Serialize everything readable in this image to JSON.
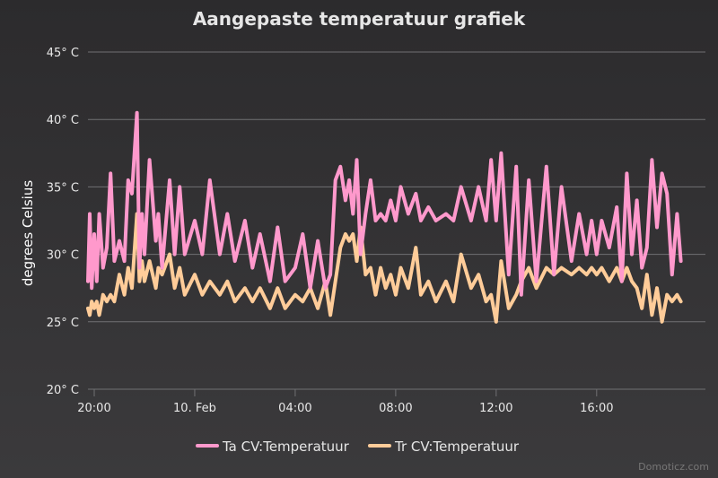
{
  "chart_data": {
    "type": "line",
    "title": "Aangepaste temperatuur grafiek",
    "ylabel": "degrees Celsius",
    "ylim": [
      20,
      45
    ],
    "yticks": [
      20,
      25,
      30,
      35,
      40,
      45
    ],
    "ytick_labels": [
      "20° C",
      "25° C",
      "30° C",
      "35° C",
      "40° C",
      "45° C"
    ],
    "xlim": [
      "19:45",
      "20:20 +1d"
    ],
    "xticks": [
      {
        "label": "20:00",
        "hour": 20
      },
      {
        "label": "10. Feb",
        "hour": 24
      },
      {
        "label": "04:00",
        "hour": 28
      },
      {
        "label": "08:00",
        "hour": 32
      },
      {
        "label": "12:00",
        "hour": 36
      },
      {
        "label": "16:00",
        "hour": 40
      }
    ],
    "grid": true,
    "legend_position": "bottom",
    "credit": "Domoticz.com",
    "series": [
      {
        "name": "Ta CV:Temperatuur",
        "color": "#ff99cc",
        "hours": [
          19.75,
          19.82,
          19.9,
          20.0,
          20.1,
          20.2,
          20.35,
          20.5,
          20.65,
          20.8,
          21.0,
          21.2,
          21.35,
          21.5,
          21.7,
          21.8,
          21.9,
          22.0,
          22.2,
          22.45,
          22.55,
          22.7,
          23.0,
          23.2,
          23.4,
          23.6,
          24.0,
          24.3,
          24.6,
          25.0,
          25.3,
          25.6,
          26.0,
          26.3,
          26.6,
          27.0,
          27.3,
          27.6,
          28.0,
          28.3,
          28.6,
          28.9,
          29.2,
          29.4,
          29.6,
          29.8,
          30.0,
          30.15,
          30.3,
          30.45,
          30.6,
          30.8,
          31.0,
          31.2,
          31.4,
          31.6,
          31.8,
          32.0,
          32.2,
          32.5,
          32.8,
          33.0,
          33.3,
          33.6,
          34.0,
          34.3,
          34.6,
          35.0,
          35.3,
          35.6,
          35.8,
          36.0,
          36.2,
          36.5,
          36.8,
          37.0,
          37.3,
          37.6,
          38.0,
          38.3,
          38.6,
          39.0,
          39.3,
          39.6,
          39.8,
          40.0,
          40.2,
          40.5,
          40.8,
          41.0,
          41.2,
          41.4,
          41.6,
          41.8,
          42.0,
          42.2,
          42.4,
          42.6,
          42.8,
          43.0,
          43.2,
          43.35
        ],
        "values": [
          28.0,
          33.0,
          27.5,
          31.5,
          28.0,
          33.0,
          29.0,
          30.5,
          36.0,
          29.5,
          31.0,
          29.5,
          35.5,
          34.5,
          40.5,
          29.0,
          33.0,
          30.0,
          37.0,
          31.0,
          33.0,
          29.0,
          35.5,
          30.0,
          35.0,
          30.0,
          32.5,
          30.0,
          35.5,
          30.0,
          33.0,
          29.5,
          32.5,
          29.0,
          31.5,
          28.0,
          32.0,
          28.0,
          29.0,
          31.5,
          27.5,
          31.0,
          27.5,
          28.5,
          35.5,
          36.5,
          34.0,
          35.5,
          33.0,
          37.0,
          30.0,
          33.0,
          35.5,
          32.5,
          33.0,
          32.5,
          34.0,
          32.5,
          35.0,
          33.0,
          34.5,
          32.5,
          33.5,
          32.5,
          33.0,
          32.5,
          35.0,
          32.5,
          35.0,
          32.5,
          37.0,
          32.5,
          37.5,
          28.5,
          36.5,
          27.0,
          35.5,
          28.0,
          36.5,
          28.5,
          35.0,
          29.5,
          33.0,
          30.0,
          32.5,
          30.0,
          32.5,
          30.5,
          33.5,
          28.0,
          36.0,
          30.0,
          34.0,
          29.0,
          30.5,
          37.0,
          32.0,
          36.0,
          34.5,
          28.5,
          33.0,
          29.5
        ]
      },
      {
        "name": "Tr CV:Temperatuur",
        "color": "#ffcc99",
        "hours": [
          19.75,
          19.82,
          19.9,
          20.0,
          20.1,
          20.2,
          20.35,
          20.5,
          20.65,
          20.8,
          21.0,
          21.2,
          21.35,
          21.5,
          21.7,
          21.8,
          21.9,
          22.0,
          22.2,
          22.45,
          22.55,
          22.7,
          23.0,
          23.2,
          23.4,
          23.6,
          24.0,
          24.3,
          24.6,
          25.0,
          25.3,
          25.6,
          26.0,
          26.3,
          26.6,
          27.0,
          27.3,
          27.6,
          28.0,
          28.3,
          28.6,
          28.9,
          29.2,
          29.4,
          29.6,
          29.8,
          30.0,
          30.15,
          30.3,
          30.45,
          30.6,
          30.8,
          31.0,
          31.2,
          31.4,
          31.6,
          31.8,
          32.0,
          32.2,
          32.5,
          32.8,
          33.0,
          33.3,
          33.6,
          34.0,
          34.3,
          34.6,
          35.0,
          35.3,
          35.6,
          35.8,
          36.0,
          36.2,
          36.5,
          36.8,
          37.0,
          37.3,
          37.6,
          38.0,
          38.3,
          38.6,
          39.0,
          39.3,
          39.6,
          39.8,
          40.0,
          40.2,
          40.5,
          40.8,
          41.0,
          41.2,
          41.4,
          41.6,
          41.8,
          42.0,
          42.2,
          42.4,
          42.6,
          42.8,
          43.0,
          43.2,
          43.35
        ],
        "values": [
          26.0,
          25.5,
          26.5,
          26.0,
          26.5,
          25.5,
          27.0,
          26.5,
          27.0,
          26.5,
          28.5,
          27.0,
          29.0,
          27.5,
          33.0,
          28.0,
          29.5,
          28.0,
          29.5,
          27.5,
          29.0,
          28.5,
          30.0,
          27.5,
          29.0,
          27.0,
          28.5,
          27.0,
          28.0,
          27.0,
          28.0,
          26.5,
          27.5,
          26.5,
          27.5,
          26.0,
          27.5,
          26.0,
          27.0,
          26.5,
          27.5,
          26.0,
          28.0,
          25.5,
          28.0,
          30.5,
          31.5,
          31.0,
          31.5,
          29.5,
          32.0,
          28.5,
          29.0,
          27.0,
          29.0,
          27.5,
          28.5,
          27.0,
          29.0,
          27.5,
          30.5,
          27.0,
          28.0,
          26.5,
          28.0,
          26.5,
          30.0,
          27.5,
          28.5,
          26.5,
          27.0,
          25.0,
          29.5,
          26.0,
          27.0,
          28.0,
          29.0,
          27.5,
          29.0,
          28.5,
          29.0,
          28.5,
          29.0,
          28.5,
          29.0,
          28.5,
          29.0,
          28.0,
          29.0,
          28.0,
          29.0,
          28.0,
          27.5,
          26.0,
          28.5,
          25.5,
          27.5,
          25.0,
          27.0,
          26.5,
          27.0,
          26.5
        ]
      }
    ]
  }
}
